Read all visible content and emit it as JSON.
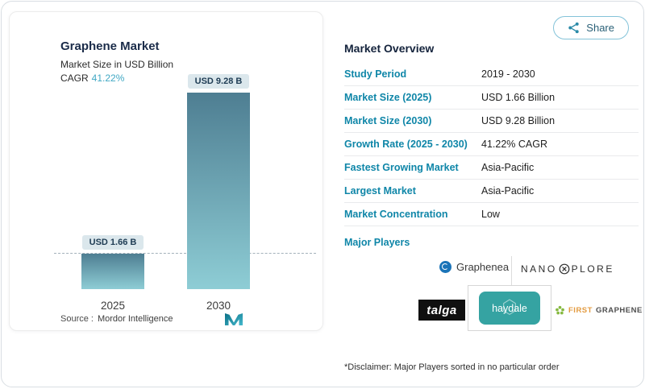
{
  "colors": {
    "accent_teal": "#0f86a8",
    "navy": "#1a2b49",
    "bar_gradient_top": "#4e7e92",
    "bar_gradient_bottom": "#8ecdd5",
    "value_pill_bg": "#dbe7ec"
  },
  "share": {
    "label": "Share"
  },
  "chart_card": {
    "title": "Graphene Market",
    "subtitle": "Market Size in USD Billion",
    "cagr_label": "CAGR",
    "cagr_value": "41.22%",
    "source_label": "Source :",
    "source_value": "Mordor Intelligence"
  },
  "chart_data": {
    "type": "bar",
    "title": "Graphene Market",
    "ylabel": "Market Size in USD Billion",
    "categories": [
      "2025",
      "2030"
    ],
    "values": [
      1.66,
      9.28
    ],
    "value_labels": [
      "USD 1.66 B",
      "USD 9.28 B"
    ],
    "unit": "USD Billion",
    "ylim": [
      0,
      9.28
    ],
    "baseline_dash_at": 1.66,
    "cagr": "41.22%"
  },
  "overview": {
    "title": "Market Overview",
    "rows": [
      {
        "label": "Study Period",
        "value": "2019 - 2030"
      },
      {
        "label": "Market Size (2025)",
        "value": "USD 1.66 Billion"
      },
      {
        "label": "Market Size (2030)",
        "value": "USD 9.28 Billion"
      },
      {
        "label": "Growth Rate (2025 - 2030)",
        "value": "41.22% CAGR"
      },
      {
        "label": "Fastest Growing Market",
        "value": "Asia-Pacific"
      },
      {
        "label": "Largest Market",
        "value": "Asia-Pacific"
      },
      {
        "label": "Market Concentration",
        "value": "Low"
      }
    ],
    "major_players_label": "Major Players",
    "disclaimer": "*Disclaimer: Major Players sorted in no particular order"
  },
  "players": {
    "graphenea": "Graphenea",
    "nanoxplore_pre": "NANO",
    "nanoxplore_post": "PLORE",
    "talga": "talga",
    "haydale": "haydale",
    "firstgraphene_first": "FIRST",
    "firstgraphene_rest": "GRAPHENE"
  }
}
